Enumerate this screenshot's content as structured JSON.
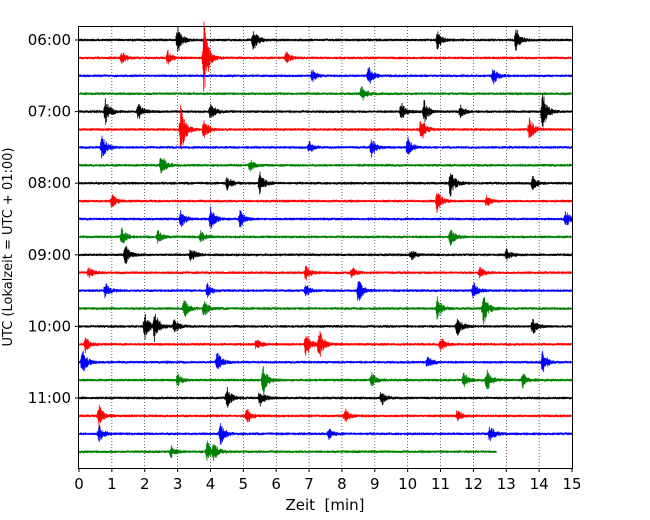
{
  "chart_data": {
    "type": "helicorder",
    "xlabel": "Zeit  [min]",
    "ylabel": "UTC (Lokalzeit = UTC + 01:00)",
    "xlim": [
      0,
      15
    ],
    "x_ticks": [
      0,
      1,
      2,
      3,
      4,
      5,
      6,
      7,
      8,
      9,
      10,
      11,
      12,
      13,
      14,
      15
    ],
    "x_grid": true,
    "line_interval_minutes": 15,
    "start_time_utc": "06:00",
    "y_tick_labels": [
      "06:00",
      "07:00",
      "08:00",
      "09:00",
      "10:00",
      "11:00"
    ],
    "trace_colors": [
      "#000000",
      "#ff0000",
      "#0000ff",
      "#008000"
    ],
    "traces": [
      {
        "start": "06:00",
        "events": [
          {
            "t": 3.0,
            "a": 0.9
          },
          {
            "t": 5.3,
            "a": 0.8
          },
          {
            "t": 10.9,
            "a": 0.6
          },
          {
            "t": 13.3,
            "a": 0.8
          }
        ]
      },
      {
        "start": "06:15",
        "events": [
          {
            "t": 1.3,
            "a": 0.4
          },
          {
            "t": 2.7,
            "a": 0.5
          },
          {
            "t": 3.8,
            "a": 2.6
          },
          {
            "t": 6.3,
            "a": 0.4
          }
        ]
      },
      {
        "start": "06:30",
        "events": [
          {
            "t": 7.1,
            "a": 0.4
          },
          {
            "t": 8.8,
            "a": 0.8
          },
          {
            "t": 12.6,
            "a": 0.6
          }
        ]
      },
      {
        "start": "06:45",
        "events": [
          {
            "t": 8.6,
            "a": 0.6
          }
        ]
      },
      {
        "start": "07:00",
        "events": [
          {
            "t": 0.8,
            "a": 0.9
          },
          {
            "t": 1.8,
            "a": 0.6
          },
          {
            "t": 4.0,
            "a": 0.6
          },
          {
            "t": 9.8,
            "a": 0.7
          },
          {
            "t": 10.5,
            "a": 0.8
          },
          {
            "t": 11.6,
            "a": 0.4
          },
          {
            "t": 14.1,
            "a": 1.4
          }
        ]
      },
      {
        "start": "07:15",
        "events": [
          {
            "t": 3.1,
            "a": 1.7
          },
          {
            "t": 3.8,
            "a": 0.7
          },
          {
            "t": 10.4,
            "a": 0.9
          },
          {
            "t": 13.7,
            "a": 0.8
          }
        ]
      },
      {
        "start": "07:30",
        "events": [
          {
            "t": 0.7,
            "a": 0.9
          },
          {
            "t": 7.0,
            "a": 0.4
          },
          {
            "t": 8.9,
            "a": 0.6
          },
          {
            "t": 10.0,
            "a": 0.7
          }
        ]
      },
      {
        "start": "07:45",
        "events": [
          {
            "t": 2.5,
            "a": 0.9
          },
          {
            "t": 5.2,
            "a": 0.4
          }
        ]
      },
      {
        "start": "08:00",
        "events": [
          {
            "t": 4.5,
            "a": 0.5
          },
          {
            "t": 5.5,
            "a": 0.8
          },
          {
            "t": 11.3,
            "a": 1.0
          },
          {
            "t": 13.8,
            "a": 0.5
          }
        ]
      },
      {
        "start": "08:15",
        "events": [
          {
            "t": 1.0,
            "a": 0.5
          },
          {
            "t": 10.9,
            "a": 0.8
          },
          {
            "t": 12.4,
            "a": 0.4
          }
        ]
      },
      {
        "start": "08:30",
        "events": [
          {
            "t": 3.1,
            "a": 0.7
          },
          {
            "t": 4.0,
            "a": 0.8
          },
          {
            "t": 4.9,
            "a": 0.6
          },
          {
            "t": 14.8,
            "a": 0.6
          }
        ]
      },
      {
        "start": "08:45",
        "events": [
          {
            "t": 1.3,
            "a": 0.6
          },
          {
            "t": 2.4,
            "a": 0.5
          },
          {
            "t": 3.7,
            "a": 0.4
          },
          {
            "t": 11.3,
            "a": 0.6
          }
        ]
      },
      {
        "start": "09:00",
        "events": [
          {
            "t": 1.4,
            "a": 0.7
          },
          {
            "t": 3.4,
            "a": 0.5
          },
          {
            "t": 10.1,
            "a": 0.4
          },
          {
            "t": 13.0,
            "a": 0.4
          }
        ]
      },
      {
        "start": "09:15",
        "events": [
          {
            "t": 0.3,
            "a": 0.4
          },
          {
            "t": 6.9,
            "a": 0.5
          },
          {
            "t": 8.3,
            "a": 0.4
          },
          {
            "t": 12.2,
            "a": 0.4
          }
        ]
      },
      {
        "start": "09:30",
        "events": [
          {
            "t": 0.8,
            "a": 0.5
          },
          {
            "t": 3.9,
            "a": 0.5
          },
          {
            "t": 6.9,
            "a": 0.4
          },
          {
            "t": 8.5,
            "a": 0.9
          },
          {
            "t": 12.0,
            "a": 0.6
          }
        ]
      },
      {
        "start": "09:45",
        "events": [
          {
            "t": 3.2,
            "a": 0.7
          },
          {
            "t": 3.8,
            "a": 0.6
          },
          {
            "t": 10.9,
            "a": 0.8
          },
          {
            "t": 12.3,
            "a": 1.2
          }
        ]
      },
      {
        "start": "10:00",
        "events": [
          {
            "t": 2.0,
            "a": 0.9
          },
          {
            "t": 2.3,
            "a": 1.0
          },
          {
            "t": 2.9,
            "a": 0.5
          },
          {
            "t": 11.5,
            "a": 0.7
          },
          {
            "t": 13.8,
            "a": 0.6
          }
        ]
      },
      {
        "start": "10:15",
        "events": [
          {
            "t": 0.2,
            "a": 0.5
          },
          {
            "t": 5.4,
            "a": 0.4
          },
          {
            "t": 6.9,
            "a": 1.0
          },
          {
            "t": 7.3,
            "a": 1.0
          },
          {
            "t": 11.0,
            "a": 0.5
          }
        ]
      },
      {
        "start": "10:30",
        "events": [
          {
            "t": 0.1,
            "a": 1.0
          },
          {
            "t": 4.2,
            "a": 0.7
          },
          {
            "t": 10.6,
            "a": 0.5
          },
          {
            "t": 14.1,
            "a": 0.8
          }
        ]
      },
      {
        "start": "10:45",
        "events": [
          {
            "t": 3.0,
            "a": 0.4
          },
          {
            "t": 5.6,
            "a": 1.0
          },
          {
            "t": 8.9,
            "a": 0.5
          },
          {
            "t": 11.7,
            "a": 0.5
          },
          {
            "t": 12.4,
            "a": 0.8
          },
          {
            "t": 13.5,
            "a": 0.5
          }
        ]
      },
      {
        "start": "11:00",
        "events": [
          {
            "t": 4.5,
            "a": 0.8
          },
          {
            "t": 5.5,
            "a": 0.6
          },
          {
            "t": 9.2,
            "a": 0.5
          }
        ]
      },
      {
        "start": "11:15",
        "events": [
          {
            "t": 0.6,
            "a": 0.8
          },
          {
            "t": 5.1,
            "a": 0.6
          },
          {
            "t": 8.1,
            "a": 0.5
          },
          {
            "t": 11.5,
            "a": 0.4
          }
        ]
      },
      {
        "start": "11:30",
        "events": [
          {
            "t": 0.6,
            "a": 0.6
          },
          {
            "t": 4.3,
            "a": 0.8
          },
          {
            "t": 7.6,
            "a": 0.4
          },
          {
            "t": 12.5,
            "a": 0.6
          }
        ]
      },
      {
        "start": "11:45",
        "end_minute": 12.7,
        "events": [
          {
            "t": 2.8,
            "a": 0.4
          },
          {
            "t": 3.9,
            "a": 0.7
          },
          {
            "t": 4.1,
            "a": 0.5
          }
        ]
      }
    ]
  }
}
